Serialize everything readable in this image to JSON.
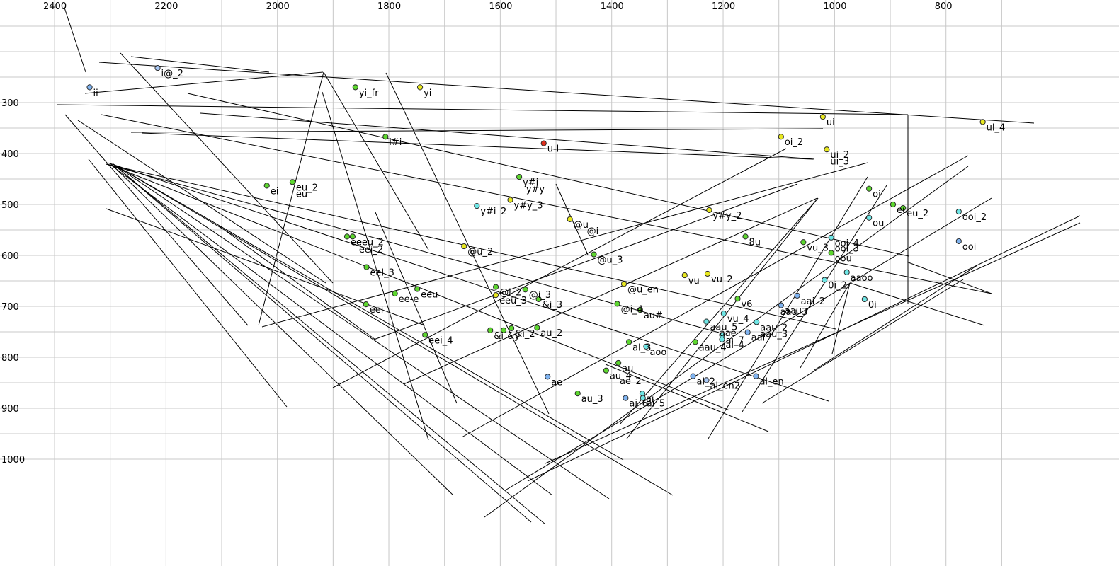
{
  "chart_data": {
    "type": "scatter",
    "title": "",
    "xlabel": "",
    "ylabel": "",
    "x_axis": {
      "reversed": true,
      "ticks": [
        2400,
        2200,
        2000,
        1800,
        1600,
        1400,
        1200,
        1000,
        800
      ]
    },
    "y_axis": {
      "reversed": true,
      "ticks": [
        300,
        400,
        500,
        600,
        700,
        800,
        900,
        1000
      ]
    },
    "grid": true,
    "colors": {
      "yellow": "#e8e820",
      "green": "#5cd62e",
      "cyan": "#6ee6e6",
      "blue": "#7fb3f0",
      "red": "#e0301e",
      "lightblue": "#a9c8f5"
    },
    "points": [
      {
        "label": "ii",
        "x": 2337,
        "y": 270,
        "color": "blue"
      },
      {
        "label": "i@_2",
        "x": 2215,
        "y": 232,
        "color": "lightblue"
      },
      {
        "label": "yi_fr",
        "x": 1860,
        "y": 270,
        "color": "green"
      },
      {
        "label": "yi",
        "x": 1744,
        "y": 270,
        "color": "yellow"
      },
      {
        "label": "i#i",
        "x": 1806,
        "y": 367,
        "color": "green"
      },
      {
        "label": "u-i",
        "x": 1522,
        "y": 380,
        "color": "red"
      },
      {
        "label": "ui",
        "x": 1021,
        "y": 328,
        "color": "yellow"
      },
      {
        "label": "ui_4",
        "x": 734,
        "y": 338,
        "color": "yellow"
      },
      {
        "label": "oi_2",
        "x": 1096,
        "y": 367,
        "color": "yellow"
      },
      {
        "label": "ui_2",
        "x": 1014,
        "y": 392,
        "color": "yellow"
      },
      {
        "label": "ui_3",
        "x": 1014,
        "y": 405,
        "color": "none"
      },
      {
        "label": "y#i",
        "x": 1566,
        "y": 446,
        "color": "green"
      },
      {
        "label": "y#y",
        "x": 1560,
        "y": 459,
        "color": "none"
      },
      {
        "label": "y#y_3",
        "x": 1582,
        "y": 491,
        "color": "yellow"
      },
      {
        "label": "y#i_2",
        "x": 1642,
        "y": 503,
        "color": "cyan"
      },
      {
        "label": "y#y_2",
        "x": 1225,
        "y": 511,
        "color": "yellow"
      },
      {
        "label": "ei",
        "x": 2019,
        "y": 463,
        "color": "green"
      },
      {
        "label": "eu_2",
        "x": 1973,
        "y": 456,
        "color": "green"
      },
      {
        "label": "eu",
        "x": 1973,
        "y": 469,
        "color": "none"
      },
      {
        "label": "oi",
        "x": 938,
        "y": 469,
        "color": "green"
      },
      {
        "label": "eu",
        "x": 895,
        "y": 500,
        "color": "green"
      },
      {
        "label": "eu_2",
        "x": 877,
        "y": 507,
        "color": "green"
      },
      {
        "label": "ou",
        "x": 938,
        "y": 526,
        "color": "cyan"
      },
      {
        "label": "ooi_2",
        "x": 777,
        "y": 514,
        "color": "cyan"
      },
      {
        "label": "ooi",
        "x": 777,
        "y": 572,
        "color": "blue"
      },
      {
        "label": "@u",
        "x": 1475,
        "y": 529,
        "color": "yellow"
      },
      {
        "label": "@i",
        "x": 1451,
        "y": 542,
        "color": "none"
      },
      {
        "label": "eeu_2",
        "x": 1865,
        "y": 563,
        "color": "green"
      },
      {
        "label": "ee",
        "x": 1875,
        "y": 563,
        "color": "green"
      },
      {
        "label": "eei_2",
        "x": 1860,
        "y": 578,
        "color": "none"
      },
      {
        "label": "8u",
        "x": 1160,
        "y": 563,
        "color": "green"
      },
      {
        "label": "vu_3",
        "x": 1056,
        "y": 574,
        "color": "green"
      },
      {
        "label": "ooi_4",
        "x": 1006,
        "y": 565,
        "color": "cyan"
      },
      {
        "label": "ooi_3",
        "x": 1006,
        "y": 576,
        "color": "none"
      },
      {
        "label": "oou",
        "x": 1006,
        "y": 595,
        "color": "green"
      },
      {
        "label": "@u_2",
        "x": 1665,
        "y": 582,
        "color": "yellow"
      },
      {
        "label": "@u_3",
        "x": 1432,
        "y": 598,
        "color": "green"
      },
      {
        "label": "eei_3",
        "x": 1840,
        "y": 623,
        "color": "green"
      },
      {
        "label": "vu",
        "x": 1269,
        "y": 639,
        "color": "yellow"
      },
      {
        "label": "vu_2",
        "x": 1228,
        "y": 636,
        "color": "yellow"
      },
      {
        "label": "aaoo",
        "x": 978,
        "y": 633,
        "color": "cyan"
      },
      {
        "label": "0i_2",
        "x": 1018,
        "y": 648,
        "color": "cyan"
      },
      {
        "label": "@u_en",
        "x": 1378,
        "y": 656,
        "color": "yellow"
      },
      {
        "label": "eeu",
        "x": 1749,
        "y": 666,
        "color": "green"
      },
      {
        "label": "@i_2",
        "x": 1608,
        "y": 662,
        "color": "green"
      },
      {
        "label": "eeu_3",
        "x": 1608,
        "y": 678,
        "color": "yellow"
      },
      {
        "label": "@i_3",
        "x": 1555,
        "y": 667,
        "color": "green"
      },
      {
        "label": "ee-e",
        "x": 1789,
        "y": 675,
        "color": "green"
      },
      {
        "label": "&i_3",
        "x": 1531,
        "y": 686,
        "color": "green"
      },
      {
        "label": "v6",
        "x": 1174,
        "y": 685,
        "color": "green"
      },
      {
        "label": "0i",
        "x": 946,
        "y": 686,
        "color": "cyan"
      },
      {
        "label": "eei",
        "x": 1841,
        "y": 696,
        "color": "green"
      },
      {
        "label": "aai_2",
        "x": 1067,
        "y": 679,
        "color": "blue"
      },
      {
        "label": "@i_4",
        "x": 1390,
        "y": 695,
        "color": "green"
      },
      {
        "label": "aau",
        "x": 1096,
        "y": 698,
        "color": "blue"
      },
      {
        "label": "aau_3",
        "x": 1104,
        "y": 700,
        "color": "none"
      },
      {
        "label": "au#",
        "x": 1349,
        "y": 707,
        "color": "green"
      },
      {
        "label": "vu_4",
        "x": 1199,
        "y": 714,
        "color": "cyan"
      },
      {
        "label": "aau_2",
        "x": 1140,
        "y": 731,
        "color": "cyan"
      },
      {
        "label": "aau_3",
        "x": 1140,
        "y": 744,
        "color": "none"
      },
      {
        "label": "aai",
        "x": 1156,
        "y": 751,
        "color": "blue"
      },
      {
        "label": "aau_5",
        "x": 1230,
        "y": 730,
        "color": "cyan"
      },
      {
        "label": "aae",
        "x": 1213,
        "y": 742,
        "color": "none"
      },
      {
        "label": "eei_4",
        "x": 1735,
        "y": 756,
        "color": "green"
      },
      {
        "label": "&i",
        "x": 1618,
        "y": 747,
        "color": "green"
      },
      {
        "label": "&y",
        "x": 1594,
        "y": 747,
        "color": "green"
      },
      {
        "label": "&i_2",
        "x": 1580,
        "y": 743,
        "color": "green"
      },
      {
        "label": "au_2",
        "x": 1534,
        "y": 742,
        "color": "green"
      },
      {
        "label": "ai_7",
        "x": 1202,
        "y": 756,
        "color": "cyan"
      },
      {
        "label": "ai_4",
        "x": 1202,
        "y": 765,
        "color": "cyan"
      },
      {
        "label": "aau_4",
        "x": 1250,
        "y": 770,
        "color": "green"
      },
      {
        "label": "ai_3",
        "x": 1369,
        "y": 770,
        "color": "green"
      },
      {
        "label": "aoo",
        "x": 1338,
        "y": 779,
        "color": "cyan"
      },
      {
        "label": "au",
        "x": 1388,
        "y": 811,
        "color": "green"
      },
      {
        "label": "au_4",
        "x": 1410,
        "y": 826,
        "color": "green"
      },
      {
        "label": "ae",
        "x": 1515,
        "y": 838,
        "color": "blue"
      },
      {
        "label": "ae_2",
        "x": 1392,
        "y": 836,
        "color": "none"
      },
      {
        "label": "ai_2",
        "x": 1254,
        "y": 837,
        "color": "blue"
      },
      {
        "label": "ai_en2",
        "x": 1230,
        "y": 845,
        "color": "lightblue"
      },
      {
        "label": "ai_en",
        "x": 1141,
        "y": 837,
        "color": "blue"
      },
      {
        "label": "au_3",
        "x": 1461,
        "y": 871,
        "color": "green"
      },
      {
        "label": "ai",
        "x": 1345,
        "y": 871,
        "color": "cyan"
      },
      {
        "label": "ai_6",
        "x": 1375,
        "y": 880,
        "color": "blue"
      },
      {
        "label": "ai_5",
        "x": 1344,
        "y": 880,
        "color": "cyan"
      }
    ]
  }
}
